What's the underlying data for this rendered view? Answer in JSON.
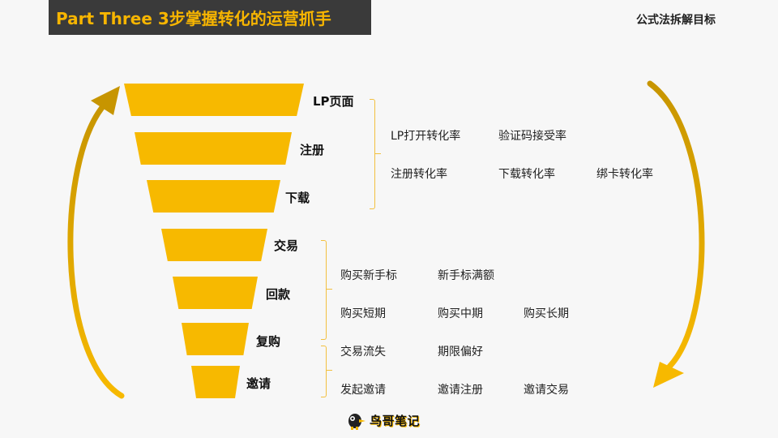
{
  "header": {
    "title": "Part Three 3步掌握转化的运营抓手",
    "top_right": "公式法拆解目标"
  },
  "funnel": {
    "color": "#f7b900",
    "stages": [
      "LP页面",
      "注册",
      "下载",
      "交易",
      "回款",
      "复购",
      "邀请"
    ]
  },
  "metrics": {
    "row1": [
      "LP打开转化率",
      "验证码接受率"
    ],
    "row2": [
      "注册转化率",
      "下载转化率",
      "绑卡转化率"
    ],
    "row3": [
      "购买新手标",
      "新手标满额"
    ],
    "row4": [
      "购买短期",
      "购买中期",
      "购买长期"
    ],
    "row5": [
      "交易流失",
      "期限偏好"
    ],
    "row6": [
      "发起邀请",
      "邀请注册",
      "邀请交易"
    ]
  },
  "footer": {
    "logo_text": "鸟哥笔记",
    "logo_icon": "bird-mascot-icon"
  },
  "colors": {
    "accent": "#f7b900",
    "title_bg": "#3a3a3a",
    "title_text": "#f7b500"
  }
}
